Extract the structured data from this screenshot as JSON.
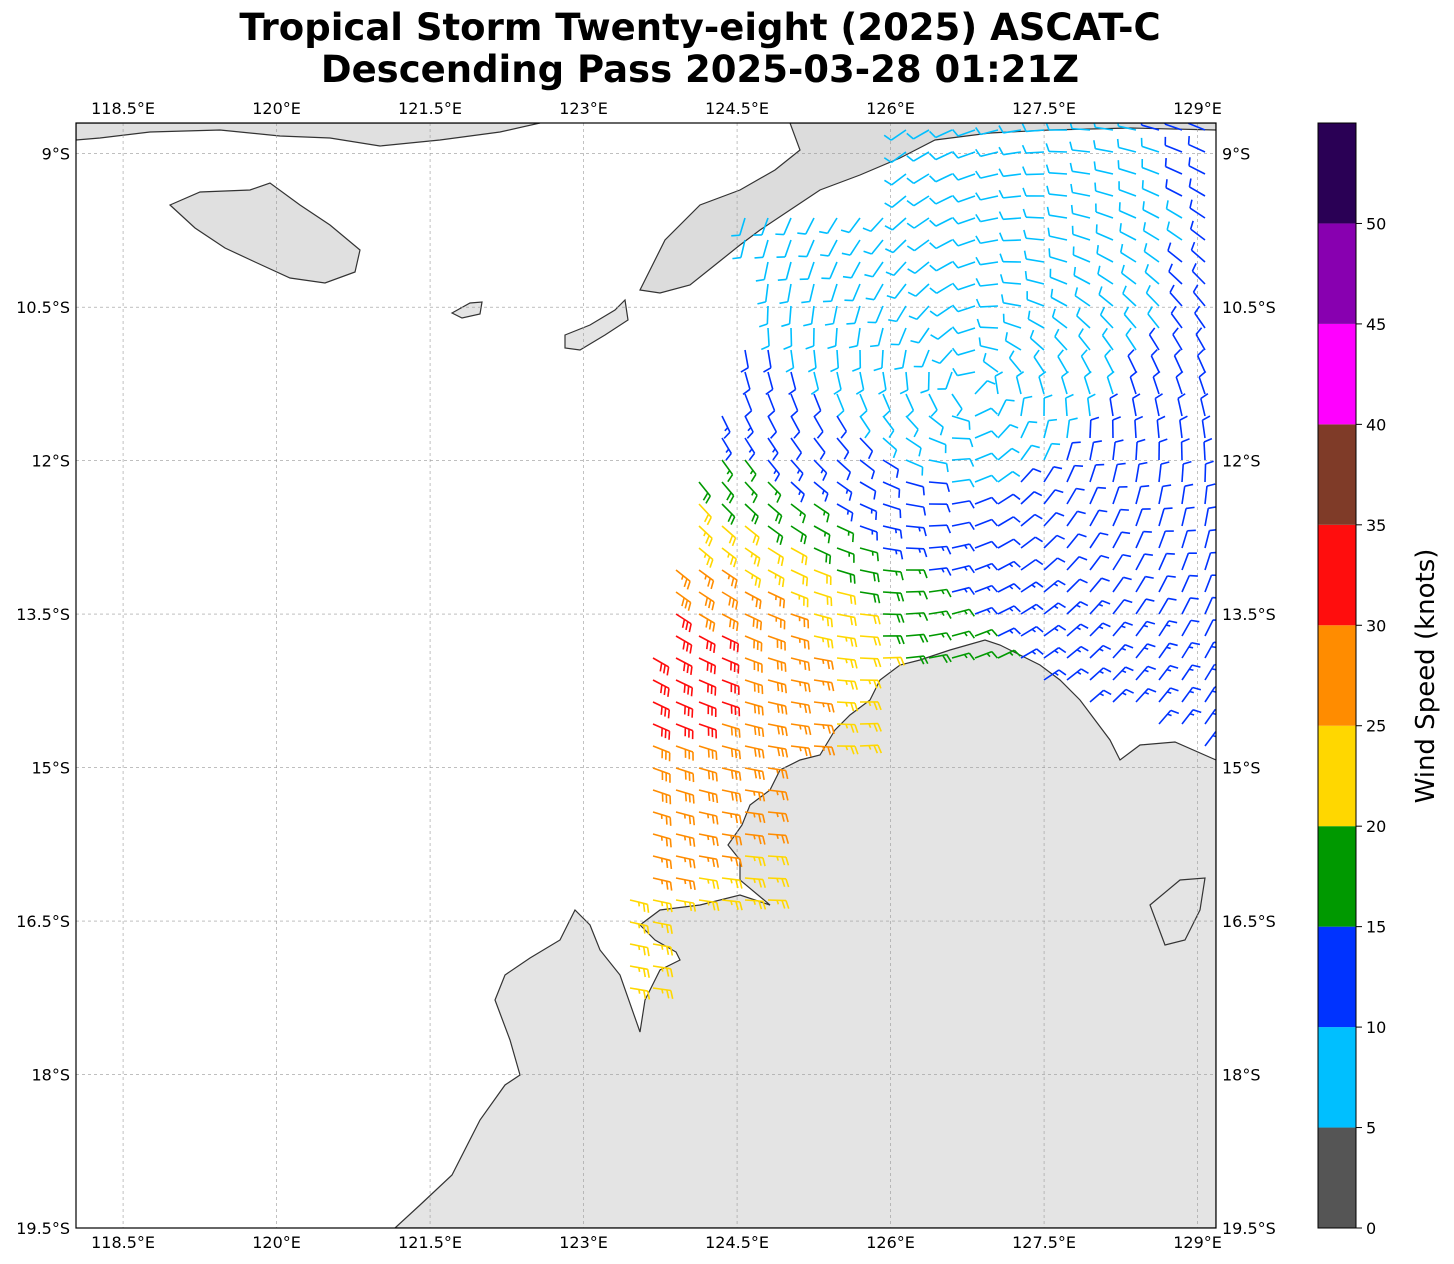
{
  "title_line1": "Tropical Storm Twenty-eight (2025) ASCAT-C",
  "title_line2": "Descending Pass 2025-03-28 01:21Z",
  "map": {
    "lon_range": [
      118.04,
      129.18
    ],
    "lat_range": [
      -19.5,
      -8.7
    ],
    "lon_ticks": [
      "118.5°E",
      "120°E",
      "121.5°E",
      "123°E",
      "124.5°E",
      "126°E",
      "127.5°E",
      "129°E"
    ],
    "lon_tick_values": [
      118.5,
      120,
      121.5,
      123,
      124.5,
      126,
      127.5,
      129
    ],
    "lat_ticks": [
      "9°S",
      "10.5°S",
      "12°S",
      "13.5°S",
      "15°S",
      "16.5°S",
      "18°S",
      "19.5°S"
    ],
    "lat_tick_values": [
      -9,
      -10.5,
      -12,
      -13.5,
      -15,
      -16.5,
      -18,
      -19.5
    ],
    "gridlines": true,
    "land_color": "#e4e4e4",
    "coast_color": "#333333"
  },
  "colorbar": {
    "label": "Wind Speed (knots)",
    "tick_labels": [
      "0",
      "5",
      "10",
      "15",
      "20",
      "25",
      "30",
      "35",
      "40",
      "45",
      "50"
    ],
    "bins": [
      {
        "min": 0,
        "max": 5,
        "color": "#555555"
      },
      {
        "min": 5,
        "max": 10,
        "color": "#00bfff"
      },
      {
        "min": 10,
        "max": 15,
        "color": "#0033ff"
      },
      {
        "min": 15,
        "max": 20,
        "color": "#009900"
      },
      {
        "min": 20,
        "max": 25,
        "color": "#ffd700"
      },
      {
        "min": 25,
        "max": 30,
        "color": "#ff8c00"
      },
      {
        "min": 30,
        "max": 35,
        "color": "#ff0d0d"
      },
      {
        "min": 35,
        "max": 40,
        "color": "#7f3b28"
      },
      {
        "min": 40,
        "max": 45,
        "color": "#ff00ff"
      },
      {
        "min": 45,
        "max": 50,
        "color": "#8800b0"
      },
      {
        "min": 50,
        "max": 55,
        "color": "#2a0055"
      }
    ]
  },
  "chart_data": {
    "type": "wind-barb-map",
    "center": {
      "lon": 126.8,
      "lat": -11.3
    },
    "swath_lon_range": [
      123.4,
      129.2
    ],
    "swath_lat_range": [
      -17.2,
      -8.7
    ],
    "max_wind_kt": 34,
    "regions": [
      {
        "name": "strong-west",
        "lon": 123.9,
        "lat": -14.0,
        "speed_kt": 32
      },
      {
        "name": "center",
        "lon": 126.8,
        "lat": -11.3,
        "speed_kt": 7
      },
      {
        "name": "north",
        "lon": 126.0,
        "lat": -10.0,
        "speed_kt": 8
      },
      {
        "name": "east",
        "lon": 128.7,
        "lat": -12.5,
        "speed_kt": 12
      }
    ]
  }
}
